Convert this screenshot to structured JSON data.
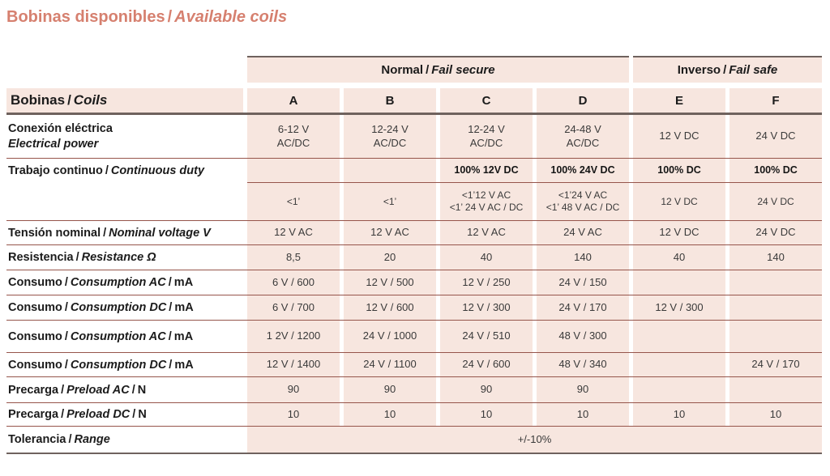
{
  "sep": "/",
  "title": {
    "es": "Bobinas disponibles",
    "en": "Available coils"
  },
  "groups": {
    "normal": {
      "es": "Normal",
      "en": "Fail secure"
    },
    "inverso": {
      "es": "Inverso",
      "en": "Fail safe"
    }
  },
  "header": {
    "es": "Bobinas",
    "en": "Coils",
    "cols": [
      "A",
      "B",
      "C",
      "D",
      "E",
      "F"
    ]
  },
  "rows": {
    "conexion": {
      "es": "Conexión eléctrica",
      "en": "Electrical power",
      "values": [
        [
          "6-12 V",
          "AC/DC"
        ],
        [
          "12-24 V",
          "AC/DC"
        ],
        [
          "12-24 V",
          "AC/DC"
        ],
        [
          "24-48 V",
          "AC/DC"
        ],
        [
          "12 V DC"
        ],
        [
          "24 V DC"
        ]
      ]
    },
    "trabajo": {
      "es": "Trabajo continuo",
      "en": "Continuous duty",
      "sub1": [
        "",
        "",
        "100% 12V DC",
        "100% 24V DC",
        "100% DC",
        "100% DC"
      ],
      "sub2": [
        [
          "<1’"
        ],
        [
          "<1’"
        ],
        [
          "<1’12 V AC",
          "<1’ 24 V AC / DC"
        ],
        [
          "<1’24 V AC",
          "<1’ 48 V AC / DC"
        ],
        [
          "12 V DC"
        ],
        [
          "24 V DC"
        ]
      ]
    },
    "tension": {
      "es": "Tensión nominal",
      "en": "Nominal voltage V",
      "values": [
        "12 V AC",
        "12 V AC",
        "12 V AC",
        "24 V AC",
        "12 V DC",
        "24 V DC"
      ]
    },
    "resistencia": {
      "es": "Resistencia",
      "en": "Resistance Ω",
      "values": [
        "8,5",
        "20",
        "40",
        "140",
        "40",
        "140"
      ]
    },
    "consumo_ac1": {
      "es": "Consumo",
      "en": "Consumption AC",
      "unit": "mA",
      "values": [
        "6 V / 600",
        "12 V / 500",
        "12 V / 250",
        "24 V / 150",
        "",
        ""
      ]
    },
    "consumo_dc1": {
      "es": "Consumo",
      "en": "Consumption DC",
      "unit": "mA",
      "values": [
        "6 V / 700",
        "12 V / 600",
        "12 V / 300",
        "24 V / 170",
        "12 V / 300",
        ""
      ]
    },
    "consumo_ac2": {
      "es": "Consumo",
      "en": "Consumption AC",
      "unit": "mA",
      "values": [
        "1 2V / 1200",
        "24 V / 1000",
        "24 V / 510",
        "48 V / 300",
        "",
        ""
      ]
    },
    "consumo_dc2": {
      "es": "Consumo",
      "en": "Consumption DC",
      "unit": "mA",
      "values": [
        "12 V / 1400",
        "24 V / 1100",
        "24 V / 600",
        "48 V / 340",
        "",
        "24 V / 170"
      ]
    },
    "precarga_ac": {
      "es": "Precarga",
      "en": "Preload AC",
      "unit": "N",
      "values": [
        "90",
        "90",
        "90",
        "90",
        "",
        ""
      ]
    },
    "precarga_dc": {
      "es": "Precarga",
      "en": "Preload DC",
      "unit": "N",
      "values": [
        "10",
        "10",
        "10",
        "10",
        "10",
        "10"
      ]
    },
    "tolerancia": {
      "es": "Tolerancia",
      "en": "Range",
      "value": "+/-10%"
    }
  },
  "colors": {
    "accent": "#d6806f",
    "cell_background": "#f7e6df",
    "row_rule": "#96554b",
    "frame": "#6f625e"
  }
}
